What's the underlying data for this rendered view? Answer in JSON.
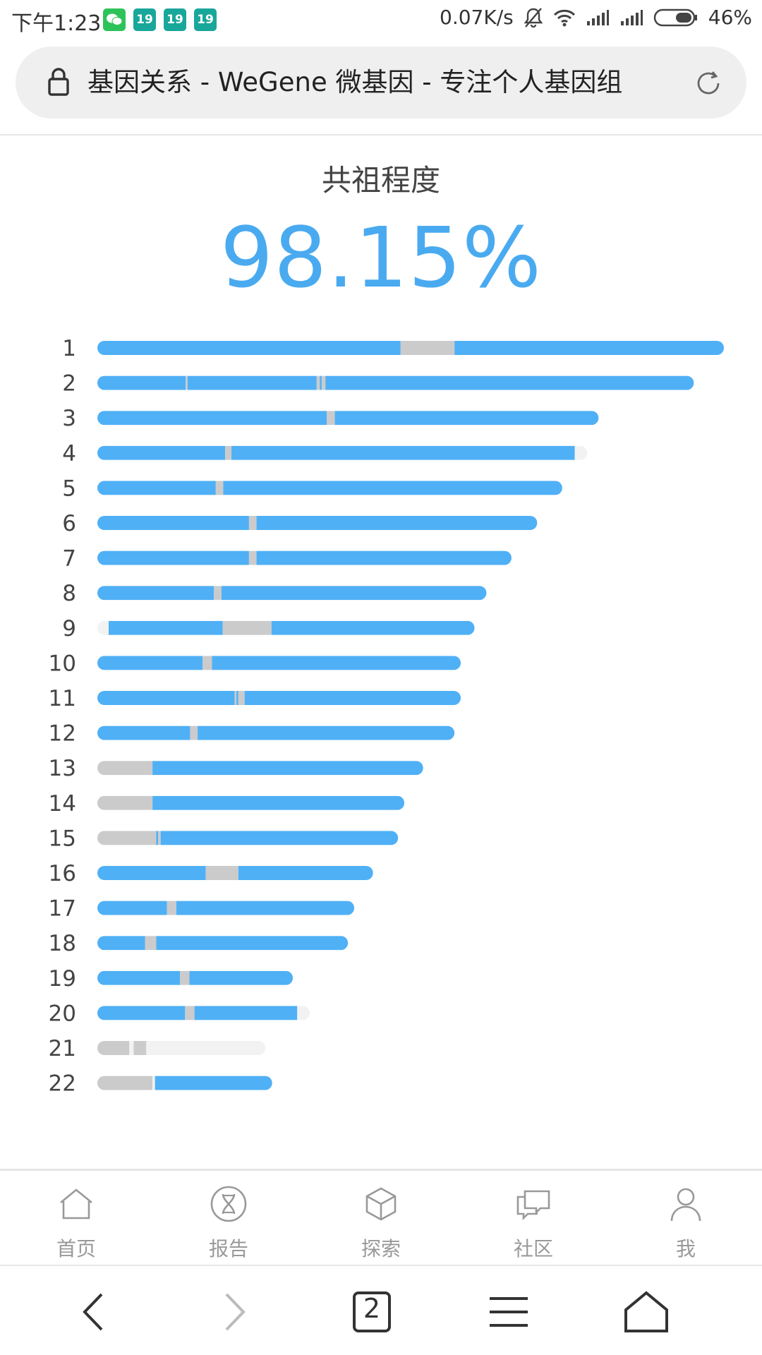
{
  "status_bar": {
    "time": "下午1:23",
    "notifications": [
      "19",
      "19",
      "19"
    ],
    "net_speed": "0.07K/s",
    "battery": "46%"
  },
  "url_bar": {
    "page_title": "基因关系 - WeGene 微基因 - 专注个人基因组"
  },
  "header": {
    "title": "共祖程度",
    "percent": "98.15%"
  },
  "colors": {
    "shared": "#4fb0f6",
    "not_shared": "#cbcbcb",
    "track": "#f2f2f2",
    "percent_text": "#4aaaf0"
  },
  "chart_data": {
    "type": "chromosome-bar",
    "value_unit": "fraction of chromosome 1 length",
    "chromosomes": [
      {
        "label": "1",
        "length": 1.0,
        "segments": [
          {
            "from": 0.0,
            "to": 0.484,
            "state": "shared"
          },
          {
            "from": 0.484,
            "to": 0.57,
            "state": "not_shared"
          },
          {
            "from": 0.57,
            "to": 1.0,
            "state": "shared"
          }
        ]
      },
      {
        "label": "2",
        "length": 0.952,
        "segments": [
          {
            "from": 0.0,
            "to": 0.141,
            "state": "shared"
          },
          {
            "from": 0.141,
            "to": 0.144,
            "state": "not_shared"
          },
          {
            "from": 0.144,
            "to": 0.35,
            "state": "shared"
          },
          {
            "from": 0.35,
            "to": 0.355,
            "state": "not_shared"
          },
          {
            "from": 0.355,
            "to": 0.358,
            "state": "shared"
          },
          {
            "from": 0.358,
            "to": 0.364,
            "state": "not_shared"
          },
          {
            "from": 0.364,
            "to": 0.952,
            "state": "shared"
          }
        ]
      },
      {
        "label": "3",
        "length": 0.8,
        "segments": [
          {
            "from": 0.0,
            "to": 0.366,
            "state": "shared"
          },
          {
            "from": 0.366,
            "to": 0.379,
            "state": "not_shared"
          },
          {
            "from": 0.379,
            "to": 0.8,
            "state": "shared"
          }
        ]
      },
      {
        "label": "4",
        "length": 0.782,
        "segments": [
          {
            "from": 0.0,
            "to": 0.204,
            "state": "shared"
          },
          {
            "from": 0.204,
            "to": 0.214,
            "state": "not_shared"
          },
          {
            "from": 0.214,
            "to": 0.762,
            "state": "shared"
          },
          {
            "from": 0.762,
            "to": 0.782,
            "state": "track"
          }
        ]
      },
      {
        "label": "5",
        "length": 0.742,
        "segments": [
          {
            "from": 0.0,
            "to": 0.189,
            "state": "shared"
          },
          {
            "from": 0.189,
            "to": 0.201,
            "state": "not_shared"
          },
          {
            "from": 0.201,
            "to": 0.742,
            "state": "shared"
          }
        ]
      },
      {
        "label": "6",
        "length": 0.702,
        "segments": [
          {
            "from": 0.0,
            "to": 0.242,
            "state": "shared"
          },
          {
            "from": 0.242,
            "to": 0.254,
            "state": "not_shared"
          },
          {
            "from": 0.254,
            "to": 0.702,
            "state": "shared"
          }
        ]
      },
      {
        "label": "7",
        "length": 0.661,
        "segments": [
          {
            "from": 0.0,
            "to": 0.242,
            "state": "shared"
          },
          {
            "from": 0.242,
            "to": 0.254,
            "state": "not_shared"
          },
          {
            "from": 0.254,
            "to": 0.661,
            "state": "shared"
          }
        ]
      },
      {
        "label": "8",
        "length": 0.621,
        "segments": [
          {
            "from": 0.0,
            "to": 0.186,
            "state": "shared"
          },
          {
            "from": 0.186,
            "to": 0.198,
            "state": "not_shared"
          },
          {
            "from": 0.198,
            "to": 0.621,
            "state": "shared"
          }
        ]
      },
      {
        "label": "9",
        "length": 0.602,
        "segments": [
          {
            "from": 0.0,
            "to": 0.018,
            "state": "track"
          },
          {
            "from": 0.018,
            "to": 0.2,
            "state": "shared"
          },
          {
            "from": 0.2,
            "to": 0.278,
            "state": "not_shared"
          },
          {
            "from": 0.278,
            "to": 0.602,
            "state": "shared"
          }
        ]
      },
      {
        "label": "10",
        "length": 0.58,
        "segments": [
          {
            "from": 0.0,
            "to": 0.168,
            "state": "shared"
          },
          {
            "from": 0.168,
            "to": 0.183,
            "state": "not_shared"
          },
          {
            "from": 0.183,
            "to": 0.58,
            "state": "shared"
          }
        ]
      },
      {
        "label": "11",
        "length": 0.58,
        "segments": [
          {
            "from": 0.0,
            "to": 0.219,
            "state": "shared"
          },
          {
            "from": 0.219,
            "to": 0.222,
            "state": "not_shared"
          },
          {
            "from": 0.222,
            "to": 0.225,
            "state": "shared"
          },
          {
            "from": 0.225,
            "to": 0.235,
            "state": "not_shared"
          },
          {
            "from": 0.235,
            "to": 0.58,
            "state": "shared"
          }
        ]
      },
      {
        "label": "12",
        "length": 0.57,
        "segments": [
          {
            "from": 0.0,
            "to": 0.148,
            "state": "shared"
          },
          {
            "from": 0.148,
            "to": 0.16,
            "state": "not_shared"
          },
          {
            "from": 0.16,
            "to": 0.57,
            "state": "shared"
          }
        ]
      },
      {
        "label": "13",
        "length": 0.52,
        "segments": [
          {
            "from": 0.0,
            "to": 0.088,
            "state": "not_shared"
          },
          {
            "from": 0.088,
            "to": 0.52,
            "state": "shared"
          }
        ]
      },
      {
        "label": "14",
        "length": 0.49,
        "segments": [
          {
            "from": 0.0,
            "to": 0.088,
            "state": "not_shared"
          },
          {
            "from": 0.088,
            "to": 0.49,
            "state": "shared"
          }
        ]
      },
      {
        "label": "15",
        "length": 0.48,
        "segments": [
          {
            "from": 0.0,
            "to": 0.094,
            "state": "not_shared"
          },
          {
            "from": 0.094,
            "to": 0.097,
            "state": "shared"
          },
          {
            "from": 0.097,
            "to": 0.101,
            "state": "not_shared"
          },
          {
            "from": 0.101,
            "to": 0.48,
            "state": "shared"
          }
        ]
      },
      {
        "label": "16",
        "length": 0.44,
        "segments": [
          {
            "from": 0.0,
            "to": 0.173,
            "state": "shared"
          },
          {
            "from": 0.173,
            "to": 0.225,
            "state": "not_shared"
          },
          {
            "from": 0.225,
            "to": 0.44,
            "state": "shared"
          }
        ]
      },
      {
        "label": "17",
        "length": 0.41,
        "segments": [
          {
            "from": 0.0,
            "to": 0.111,
            "state": "shared"
          },
          {
            "from": 0.111,
            "to": 0.126,
            "state": "not_shared"
          },
          {
            "from": 0.126,
            "to": 0.41,
            "state": "shared"
          }
        ]
      },
      {
        "label": "18",
        "length": 0.4,
        "segments": [
          {
            "from": 0.0,
            "to": 0.076,
            "state": "shared"
          },
          {
            "from": 0.076,
            "to": 0.094,
            "state": "not_shared"
          },
          {
            "from": 0.094,
            "to": 0.4,
            "state": "shared"
          }
        ]
      },
      {
        "label": "19",
        "length": 0.312,
        "segments": [
          {
            "from": 0.0,
            "to": 0.132,
            "state": "shared"
          },
          {
            "from": 0.132,
            "to": 0.147,
            "state": "not_shared"
          },
          {
            "from": 0.147,
            "to": 0.312,
            "state": "shared"
          }
        ]
      },
      {
        "label": "20",
        "length": 0.339,
        "segments": [
          {
            "from": 0.0,
            "to": 0.14,
            "state": "shared"
          },
          {
            "from": 0.14,
            "to": 0.155,
            "state": "not_shared"
          },
          {
            "from": 0.155,
            "to": 0.319,
            "state": "shared"
          },
          {
            "from": 0.319,
            "to": 0.339,
            "state": "track"
          }
        ]
      },
      {
        "label": "21",
        "length": 0.268,
        "segments": [
          {
            "from": 0.0,
            "to": 0.051,
            "state": "not_shared"
          },
          {
            "from": 0.051,
            "to": 0.058,
            "state": "track"
          },
          {
            "from": 0.058,
            "to": 0.078,
            "state": "not_shared"
          },
          {
            "from": 0.078,
            "to": 0.268,
            "state": "track"
          }
        ]
      },
      {
        "label": "22",
        "length": 0.279,
        "segments": [
          {
            "from": 0.0,
            "to": 0.088,
            "state": "not_shared"
          },
          {
            "from": 0.088,
            "to": 0.092,
            "state": "track"
          },
          {
            "from": 0.092,
            "to": 0.279,
            "state": "shared"
          }
        ]
      }
    ]
  },
  "bottom_nav": {
    "items": [
      {
        "label": "首页",
        "icon": "home-icon"
      },
      {
        "label": "报告",
        "icon": "dna-report-icon"
      },
      {
        "label": "探索",
        "icon": "cube-icon"
      },
      {
        "label": "社区",
        "icon": "chat-bubbles-icon"
      },
      {
        "label": "我",
        "icon": "person-icon"
      }
    ]
  },
  "system_bar": {
    "tab_count": "2"
  }
}
